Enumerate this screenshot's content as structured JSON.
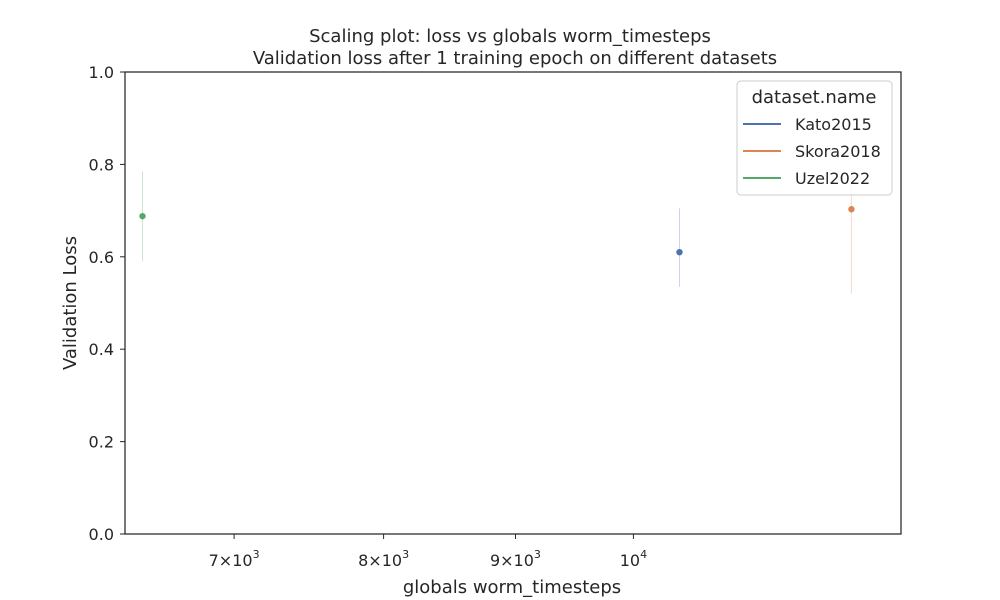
{
  "chart_data": {
    "type": "scatter",
    "title": "Scaling plot: loss vs globals worm_timesteps",
    "subtitle": "Validation loss after 1 training epoch on different datasets",
    "xlabel": "globals worm_timesteps",
    "ylabel": "Validation Loss",
    "xscale": "log",
    "xlim": [
      6350,
      12700
    ],
    "ylim": [
      0,
      1
    ],
    "x_ticks": [
      {
        "value": 7000,
        "mantissa": "7",
        "exp": "3"
      },
      {
        "value": 8000,
        "mantissa": "8",
        "exp": "3"
      },
      {
        "value": 9000,
        "mantissa": "9",
        "exp": "3"
      },
      {
        "value": 10000,
        "mantissa": "",
        "exp": "4"
      }
    ],
    "y_ticks": [
      "0.0",
      "0.2",
      "0.4",
      "0.6",
      "0.8",
      "1.0"
    ],
    "grid": false,
    "legend": {
      "title": "dataset.name",
      "placement": "top-right"
    },
    "series": [
      {
        "name": "Kato2015",
        "color": "#4c72b0",
        "x": 10420,
        "y": 0.61,
        "err_low": 0.535,
        "err_high": 0.705
      },
      {
        "name": "Skora2018",
        "color": "#dd8452",
        "x": 12150,
        "y": 0.703,
        "err_low": 0.52,
        "err_high": 0.76
      },
      {
        "name": "Uzel2022",
        "color": "#55a868",
        "x": 6450,
        "y": 0.688,
        "err_low": 0.59,
        "err_high": 0.785
      }
    ]
  }
}
